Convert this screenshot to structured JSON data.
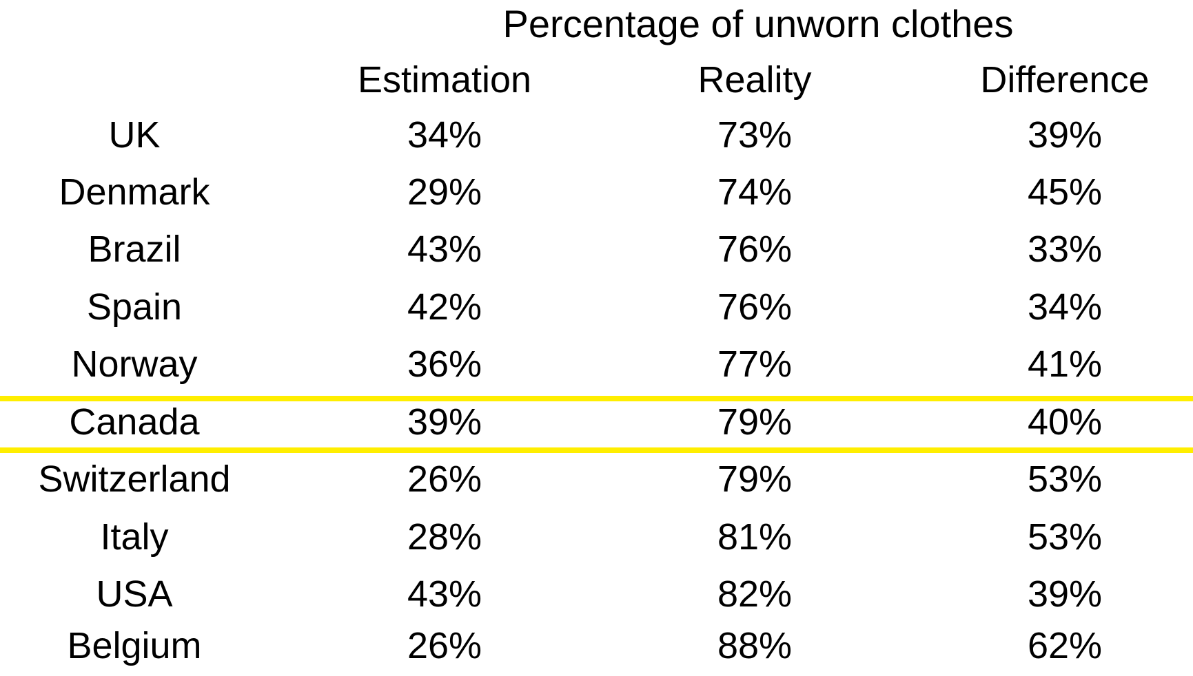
{
  "chart_data": {
    "type": "table",
    "title": "Percentage of unworn clothes",
    "columns": [
      "",
      "Estimation",
      "Reality",
      "Difference"
    ],
    "rows": [
      {
        "country": "UK",
        "estimation": "34%",
        "reality": "73%",
        "difference": "39%"
      },
      {
        "country": "Denmark",
        "estimation": "29%",
        "reality": "74%",
        "difference": "45%"
      },
      {
        "country": "Brazil",
        "estimation": "43%",
        "reality": "76%",
        "difference": "33%"
      },
      {
        "country": "Spain",
        "estimation": "42%",
        "reality": "76%",
        "difference": "34%"
      },
      {
        "country": "Norway",
        "estimation": "36%",
        "reality": "77%",
        "difference": "41%"
      },
      {
        "country": "Canada",
        "estimation": "39%",
        "reality": "79%",
        "difference": "40%"
      },
      {
        "country": "Switzerland",
        "estimation": "26%",
        "reality": "79%",
        "difference": "53%"
      },
      {
        "country": "Italy",
        "estimation": "28%",
        "reality": "81%",
        "difference": "53%"
      },
      {
        "country": "USA",
        "estimation": "43%",
        "reality": "82%",
        "difference": "39%"
      },
      {
        "country": "Belgium",
        "estimation": "26%",
        "reality": "88%",
        "difference": "62%"
      }
    ],
    "highlighted_row": "Canada",
    "highlight_color": "#FFEE00"
  }
}
